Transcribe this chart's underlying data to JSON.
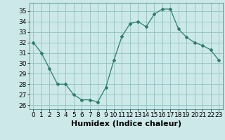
{
  "x": [
    0,
    1,
    2,
    3,
    4,
    5,
    6,
    7,
    8,
    9,
    10,
    11,
    12,
    13,
    14,
    15,
    16,
    17,
    18,
    19,
    20,
    21,
    22,
    23
  ],
  "y": [
    32,
    31,
    29.5,
    28,
    28,
    27,
    26.5,
    26.5,
    26.3,
    27.7,
    30.3,
    32.6,
    33.8,
    34,
    33.5,
    34.7,
    35.2,
    35.2,
    33.3,
    32.5,
    32,
    31.7,
    31.3,
    30.3
  ],
  "line_color": "#2d7d6e",
  "marker": "D",
  "marker_size": 2,
  "bg_color": "#cce8e8",
  "grid_color": "#88bbbb",
  "xlabel": "Humidex (Indice chaleur)",
  "xlabel_fontsize": 8,
  "tick_fontsize": 6.5,
  "xlim": [
    -0.5,
    23.5
  ],
  "ylim": [
    25.6,
    35.8
  ],
  "yticks": [
    26,
    27,
    28,
    29,
    30,
    31,
    32,
    33,
    34,
    35
  ],
  "xticks": [
    0,
    1,
    2,
    3,
    4,
    5,
    6,
    7,
    8,
    9,
    10,
    11,
    12,
    13,
    14,
    15,
    16,
    17,
    18,
    19,
    20,
    21,
    22,
    23
  ]
}
